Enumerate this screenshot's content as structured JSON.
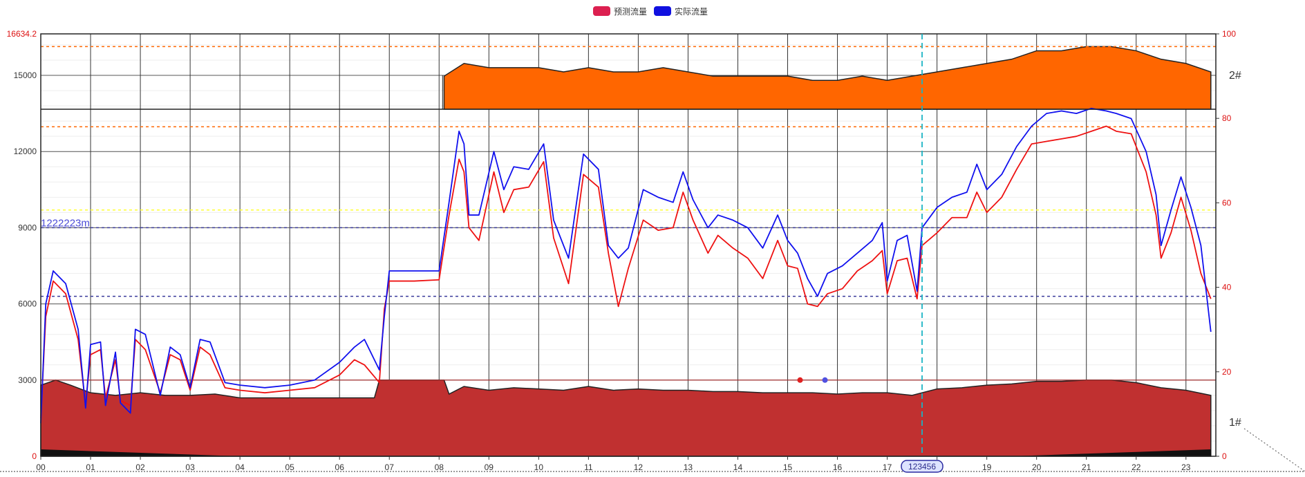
{
  "legend": {
    "items": [
      {
        "name": "预测流量",
        "color": "#dc2050"
      },
      {
        "name": "实际流量",
        "color": "#1010e0"
      }
    ]
  },
  "panels": {
    "top_label": "2#",
    "bottom_label": "1#"
  },
  "axis_pointer_label": "123456",
  "mark_line_label": "1222223m",
  "chart_data": {
    "type": "line",
    "x": [
      "00",
      "01",
      "02",
      "03",
      "04",
      "05",
      "06",
      "07",
      "08",
      "09",
      "10",
      "11",
      "12",
      "13",
      "14",
      "15",
      "16",
      "17",
      "18",
      "19",
      "20",
      "21",
      "22",
      "23"
    ],
    "y_left": {
      "max_label": "16634.2",
      "ticks": [
        "0",
        "3000",
        "6000",
        "9000",
        "12000",
        "15000"
      ],
      "range": [
        0,
        16634.2
      ]
    },
    "y_right": {
      "ticks": [
        "0",
        "20",
        "40",
        "60",
        "80",
        "100"
      ],
      "range": [
        0,
        100
      ]
    },
    "reference_lines": [
      {
        "value_pct": 97,
        "color": "#ff6600",
        "style": "dashed"
      },
      {
        "value_pct": 78,
        "color": "#ff6600",
        "style": "dashed"
      },
      {
        "value": 9700,
        "color": "#ffff33",
        "style": "dashed"
      },
      {
        "value": 9000,
        "color": "#3a3a9a",
        "style": "dashed",
        "label": "1222223m"
      },
      {
        "value": 6300,
        "color": "#3a3a9a",
        "style": "dashed"
      },
      {
        "value": 3000,
        "color": "#b03030",
        "style": "solid"
      }
    ],
    "pointer_hour": 17.7,
    "markers": [
      {
        "hour": 15.25,
        "value": 3000,
        "color": "#e02020"
      },
      {
        "hour": 15.75,
        "value": 3000,
        "color": "#5050e0"
      }
    ],
    "series": [
      {
        "name": "预测流量",
        "color": "#ee1111",
        "points": [
          [
            0,
            1500
          ],
          [
            0.1,
            5500
          ],
          [
            0.25,
            6900
          ],
          [
            0.5,
            6400
          ],
          [
            0.75,
            4600
          ],
          [
            0.9,
            2000
          ],
          [
            1.0,
            4000
          ],
          [
            1.2,
            4200
          ],
          [
            1.3,
            2300
          ],
          [
            1.5,
            3800
          ],
          [
            1.6,
            2200
          ],
          [
            1.8,
            2000
          ],
          [
            1.9,
            4600
          ],
          [
            2.1,
            4200
          ],
          [
            2.4,
            2500
          ],
          [
            2.6,
            4000
          ],
          [
            2.8,
            3800
          ],
          [
            3.0,
            2600
          ],
          [
            3.2,
            4300
          ],
          [
            3.4,
            4000
          ],
          [
            3.7,
            2700
          ],
          [
            4.0,
            2600
          ],
          [
            4.5,
            2500
          ],
          [
            5.0,
            2600
          ],
          [
            5.5,
            2700
          ],
          [
            6.0,
            3200
          ],
          [
            6.3,
            3800
          ],
          [
            6.5,
            3600
          ],
          [
            6.8,
            2900
          ],
          [
            6.9,
            5800
          ],
          [
            7.0,
            6900
          ],
          [
            7.5,
            6900
          ],
          [
            8.0,
            6950
          ],
          [
            8.2,
            9500
          ],
          [
            8.4,
            11700
          ],
          [
            8.5,
            11200
          ],
          [
            8.6,
            9000
          ],
          [
            8.8,
            8500
          ],
          [
            9.1,
            11200
          ],
          [
            9.3,
            9600
          ],
          [
            9.5,
            10500
          ],
          [
            9.8,
            10600
          ],
          [
            10.1,
            11600
          ],
          [
            10.3,
            8600
          ],
          [
            10.6,
            6800
          ],
          [
            10.9,
            11100
          ],
          [
            11.2,
            10600
          ],
          [
            11.4,
            8000
          ],
          [
            11.6,
            5900
          ],
          [
            11.8,
            7400
          ],
          [
            12.1,
            9300
          ],
          [
            12.4,
            8900
          ],
          [
            12.7,
            9000
          ],
          [
            12.9,
            10400
          ],
          [
            13.1,
            9300
          ],
          [
            13.4,
            8000
          ],
          [
            13.6,
            8700
          ],
          [
            13.9,
            8200
          ],
          [
            14.2,
            7800
          ],
          [
            14.5,
            7000
          ],
          [
            14.8,
            8500
          ],
          [
            15.0,
            7500
          ],
          [
            15.2,
            7400
          ],
          [
            15.4,
            6000
          ],
          [
            15.6,
            5900
          ],
          [
            15.8,
            6400
          ],
          [
            16.1,
            6600
          ],
          [
            16.4,
            7300
          ],
          [
            16.7,
            7700
          ],
          [
            16.9,
            8100
          ],
          [
            17.0,
            6400
          ],
          [
            17.2,
            7700
          ],
          [
            17.4,
            7800
          ],
          [
            17.6,
            6200
          ],
          [
            17.7,
            8300
          ],
          [
            18.0,
            8800
          ],
          [
            18.3,
            9400
          ],
          [
            18.6,
            9400
          ],
          [
            18.8,
            10400
          ],
          [
            19.0,
            9600
          ],
          [
            19.3,
            10200
          ],
          [
            19.6,
            11300
          ],
          [
            19.9,
            12300
          ],
          [
            20.2,
            12400
          ],
          [
            20.5,
            12500
          ],
          [
            20.8,
            12600
          ],
          [
            21.1,
            12800
          ],
          [
            21.4,
            13000
          ],
          [
            21.6,
            12800
          ],
          [
            21.9,
            12700
          ],
          [
            22.2,
            11200
          ],
          [
            22.4,
            9500
          ],
          [
            22.5,
            7800
          ],
          [
            22.7,
            8800
          ],
          [
            22.9,
            10200
          ],
          [
            23.1,
            8900
          ],
          [
            23.3,
            7200
          ],
          [
            23.5,
            6200
          ]
        ]
      },
      {
        "name": "实际流量",
        "color": "#1010ee",
        "points": [
          [
            0,
            1300
          ],
          [
            0.1,
            6000
          ],
          [
            0.25,
            7300
          ],
          [
            0.5,
            6800
          ],
          [
            0.75,
            5000
          ],
          [
            0.9,
            1900
          ],
          [
            1.0,
            4400
          ],
          [
            1.2,
            4500
          ],
          [
            1.3,
            2000
          ],
          [
            1.5,
            4100
          ],
          [
            1.6,
            2100
          ],
          [
            1.8,
            1700
          ],
          [
            1.9,
            5000
          ],
          [
            2.1,
            4800
          ],
          [
            2.4,
            2400
          ],
          [
            2.6,
            4300
          ],
          [
            2.8,
            4000
          ],
          [
            3.0,
            2700
          ],
          [
            3.2,
            4600
          ],
          [
            3.4,
            4500
          ],
          [
            3.7,
            2900
          ],
          [
            4.0,
            2800
          ],
          [
            4.5,
            2700
          ],
          [
            5.0,
            2800
          ],
          [
            5.5,
            3000
          ],
          [
            6.0,
            3700
          ],
          [
            6.3,
            4300
          ],
          [
            6.5,
            4600
          ],
          [
            6.8,
            3400
          ],
          [
            6.9,
            5500
          ],
          [
            7.0,
            7300
          ],
          [
            7.5,
            7300
          ],
          [
            8.0,
            7300
          ],
          [
            8.2,
            10000
          ],
          [
            8.4,
            12800
          ],
          [
            8.5,
            12300
          ],
          [
            8.6,
            9500
          ],
          [
            8.8,
            9500
          ],
          [
            9.1,
            12000
          ],
          [
            9.3,
            10500
          ],
          [
            9.5,
            11400
          ],
          [
            9.8,
            11300
          ],
          [
            10.1,
            12300
          ],
          [
            10.3,
            9300
          ],
          [
            10.6,
            7800
          ],
          [
            10.9,
            11900
          ],
          [
            11.2,
            11300
          ],
          [
            11.4,
            8300
          ],
          [
            11.6,
            7800
          ],
          [
            11.8,
            8200
          ],
          [
            12.1,
            10500
          ],
          [
            12.4,
            10200
          ],
          [
            12.7,
            10000
          ],
          [
            12.9,
            11200
          ],
          [
            13.1,
            10100
          ],
          [
            13.4,
            9000
          ],
          [
            13.6,
            9500
          ],
          [
            13.9,
            9300
          ],
          [
            14.2,
            9000
          ],
          [
            14.5,
            8200
          ],
          [
            14.8,
            9500
          ],
          [
            15.0,
            8500
          ],
          [
            15.2,
            8000
          ],
          [
            15.4,
            7000
          ],
          [
            15.6,
            6300
          ],
          [
            15.8,
            7200
          ],
          [
            16.1,
            7500
          ],
          [
            16.4,
            8000
          ],
          [
            16.7,
            8500
          ],
          [
            16.9,
            9200
          ],
          [
            17.0,
            6900
          ],
          [
            17.2,
            8500
          ],
          [
            17.4,
            8700
          ],
          [
            17.6,
            6500
          ],
          [
            17.7,
            9000
          ],
          [
            18.0,
            9800
          ],
          [
            18.3,
            10200
          ],
          [
            18.6,
            10400
          ],
          [
            18.8,
            11500
          ],
          [
            19.0,
            10500
          ],
          [
            19.3,
            11100
          ],
          [
            19.6,
            12200
          ],
          [
            19.9,
            13000
          ],
          [
            20.2,
            13500
          ],
          [
            20.5,
            13600
          ],
          [
            20.8,
            13500
          ],
          [
            21.1,
            13700
          ],
          [
            21.4,
            13600
          ],
          [
            21.6,
            13500
          ],
          [
            21.9,
            13300
          ],
          [
            22.2,
            12000
          ],
          [
            22.4,
            10300
          ],
          [
            22.5,
            8300
          ],
          [
            22.7,
            9700
          ],
          [
            22.9,
            11000
          ],
          [
            23.1,
            9800
          ],
          [
            23.3,
            8300
          ],
          [
            23.5,
            4900
          ]
        ]
      },
      {
        "name": "2#",
        "color": "#ff6600",
        "type": "area",
        "panel": "top",
        "points": [
          [
            8.1,
            90
          ],
          [
            8.5,
            93
          ],
          [
            9.0,
            92
          ],
          [
            9.5,
            92
          ],
          [
            10.0,
            92
          ],
          [
            10.5,
            91
          ],
          [
            11.0,
            92
          ],
          [
            11.5,
            91
          ],
          [
            12.0,
            91
          ],
          [
            12.5,
            92
          ],
          [
            13.0,
            91
          ],
          [
            13.5,
            90
          ],
          [
            14.0,
            90
          ],
          [
            14.5,
            90
          ],
          [
            15.0,
            90
          ],
          [
            15.5,
            89
          ],
          [
            16.0,
            89
          ],
          [
            16.5,
            90
          ],
          [
            17.0,
            89
          ],
          [
            17.5,
            90
          ],
          [
            18.0,
            91
          ],
          [
            18.5,
            92
          ],
          [
            19.0,
            93
          ],
          [
            19.5,
            94
          ],
          [
            20.0,
            96
          ],
          [
            20.5,
            96
          ],
          [
            21.0,
            97
          ],
          [
            21.5,
            97
          ],
          [
            22.0,
            96
          ],
          [
            22.5,
            94
          ],
          [
            23.0,
            93
          ],
          [
            23.5,
            91
          ]
        ]
      },
      {
        "name": "1#",
        "color": "#c03030",
        "type": "area",
        "panel": "bottom",
        "points": [
          [
            0,
            2800
          ],
          [
            0.3,
            3000
          ],
          [
            0.6,
            2800
          ],
          [
            1.0,
            2500
          ],
          [
            1.5,
            2400
          ],
          [
            2.0,
            2500
          ],
          [
            2.5,
            2400
          ],
          [
            3.0,
            2400
          ],
          [
            3.5,
            2450
          ],
          [
            4.0,
            2300
          ],
          [
            5.0,
            2300
          ],
          [
            6.0,
            2300
          ],
          [
            6.7,
            2300
          ],
          [
            6.8,
            3000
          ],
          [
            7.5,
            3000
          ],
          [
            8.1,
            3000
          ],
          [
            8.2,
            2450
          ],
          [
            8.5,
            2750
          ],
          [
            9.0,
            2600
          ],
          [
            9.5,
            2700
          ],
          [
            10.0,
            2650
          ],
          [
            10.5,
            2600
          ],
          [
            11.0,
            2750
          ],
          [
            11.5,
            2600
          ],
          [
            12.0,
            2650
          ],
          [
            12.5,
            2600
          ],
          [
            13.0,
            2600
          ],
          [
            13.5,
            2550
          ],
          [
            14.0,
            2550
          ],
          [
            14.5,
            2500
          ],
          [
            15.0,
            2500
          ],
          [
            15.5,
            2500
          ],
          [
            16.0,
            2450
          ],
          [
            16.5,
            2500
          ],
          [
            17.0,
            2500
          ],
          [
            17.5,
            2400
          ],
          [
            18.0,
            2650
          ],
          [
            18.5,
            2700
          ],
          [
            19.0,
            2800
          ],
          [
            19.5,
            2850
          ],
          [
            20.0,
            2950
          ],
          [
            20.5,
            2950
          ],
          [
            21.0,
            3000
          ],
          [
            21.5,
            3000
          ],
          [
            22.0,
            2900
          ],
          [
            22.5,
            2700
          ],
          [
            23.0,
            2600
          ],
          [
            23.5,
            2400
          ]
        ]
      }
    ]
  }
}
